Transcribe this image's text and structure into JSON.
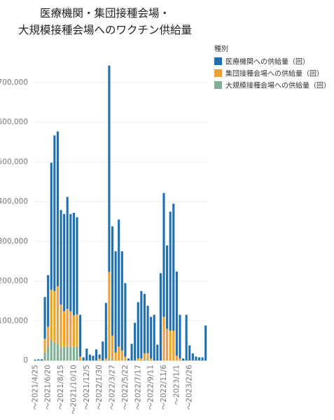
{
  "chart_data": {
    "type": "bar",
    "stacked": true,
    "title": [
      "医療機関・集団接種会場・",
      "大規模接種会場へのワクチン供給量"
    ],
    "legend": {
      "title": "種別",
      "position": "top-right"
    },
    "ylim": [
      0,
      760000
    ],
    "yticks": [
      0,
      100000,
      200000,
      300000,
      400000,
      500000,
      600000,
      700000
    ],
    "ytick_labels": [
      "0",
      "100,000",
      "200,000",
      "300,000",
      "400,000",
      "500,000",
      "600,000",
      "700,000"
    ],
    "xtick_labels": [
      "～2021/4/25",
      "～2021/6/20",
      "～2021/8/15",
      "～2021/10/10",
      "～2021/12/5",
      "～2022/1/30",
      "～2022/3/27",
      "～2022/5/22",
      "～2022/7/17",
      "～2022/9/11",
      "～2022/11/6",
      "～2023/1/1",
      "～2023/2/26"
    ],
    "xtick_every": 4,
    "grid": true,
    "series": [
      {
        "name": "医療機関への供給量（回）",
        "color": "#1f6fb4",
        "values": [
          2000,
          3000,
          3000,
          105000,
          130000,
          320000,
          392000,
          390000,
          238000,
          245000,
          282000,
          245000,
          258000,
          245000,
          105000,
          8000,
          30000,
          15000,
          12000,
          28000,
          10000,
          48000,
          140000,
          520000,
          275000,
          255000,
          320000,
          250000,
          185000,
          5000,
          42000,
          95000,
          142000,
          170000,
          150000,
          120000,
          105000,
          115000,
          40000,
          220000,
          312000,
          210000,
          300000,
          320000,
          212000,
          110000,
          5000,
          115000,
          38000,
          18000,
          10000,
          8000,
          8000,
          88000
        ]
      },
      {
        "name": "集団接種会場への供給量（回）",
        "color": "#f0a030",
        "values": [
          0,
          0,
          0,
          35000,
          50000,
          126000,
          130000,
          145000,
          108000,
          90000,
          96000,
          90000,
          80000,
          80000,
          10000,
          0,
          0,
          0,
          0,
          0,
          5000,
          0,
          5000,
          218000,
          60000,
          20000,
          35000,
          25000,
          10000,
          0,
          0,
          0,
          5000,
          5000,
          15000,
          15000,
          5000,
          0,
          0,
          0,
          110000,
          80000,
          75000,
          75000,
          12000,
          5000,
          0,
          0,
          0,
          0,
          0,
          0,
          0,
          0
        ]
      },
      {
        "name": "大規模接種会場への供給量（回）",
        "color": "#7fb095",
        "values": [
          0,
          0,
          0,
          20000,
          35000,
          52000,
          45000,
          42000,
          33000,
          34000,
          34000,
          34000,
          34000,
          36000,
          0,
          0,
          0,
          0,
          0,
          0,
          0,
          0,
          0,
          5000,
          3000,
          0,
          0,
          0,
          0,
          0,
          0,
          0,
          0,
          0,
          3000,
          3000,
          0,
          0,
          0,
          0,
          0,
          0,
          0,
          0,
          0,
          0,
          0,
          0,
          0,
          0,
          0,
          0,
          0,
          0
        ]
      }
    ]
  }
}
